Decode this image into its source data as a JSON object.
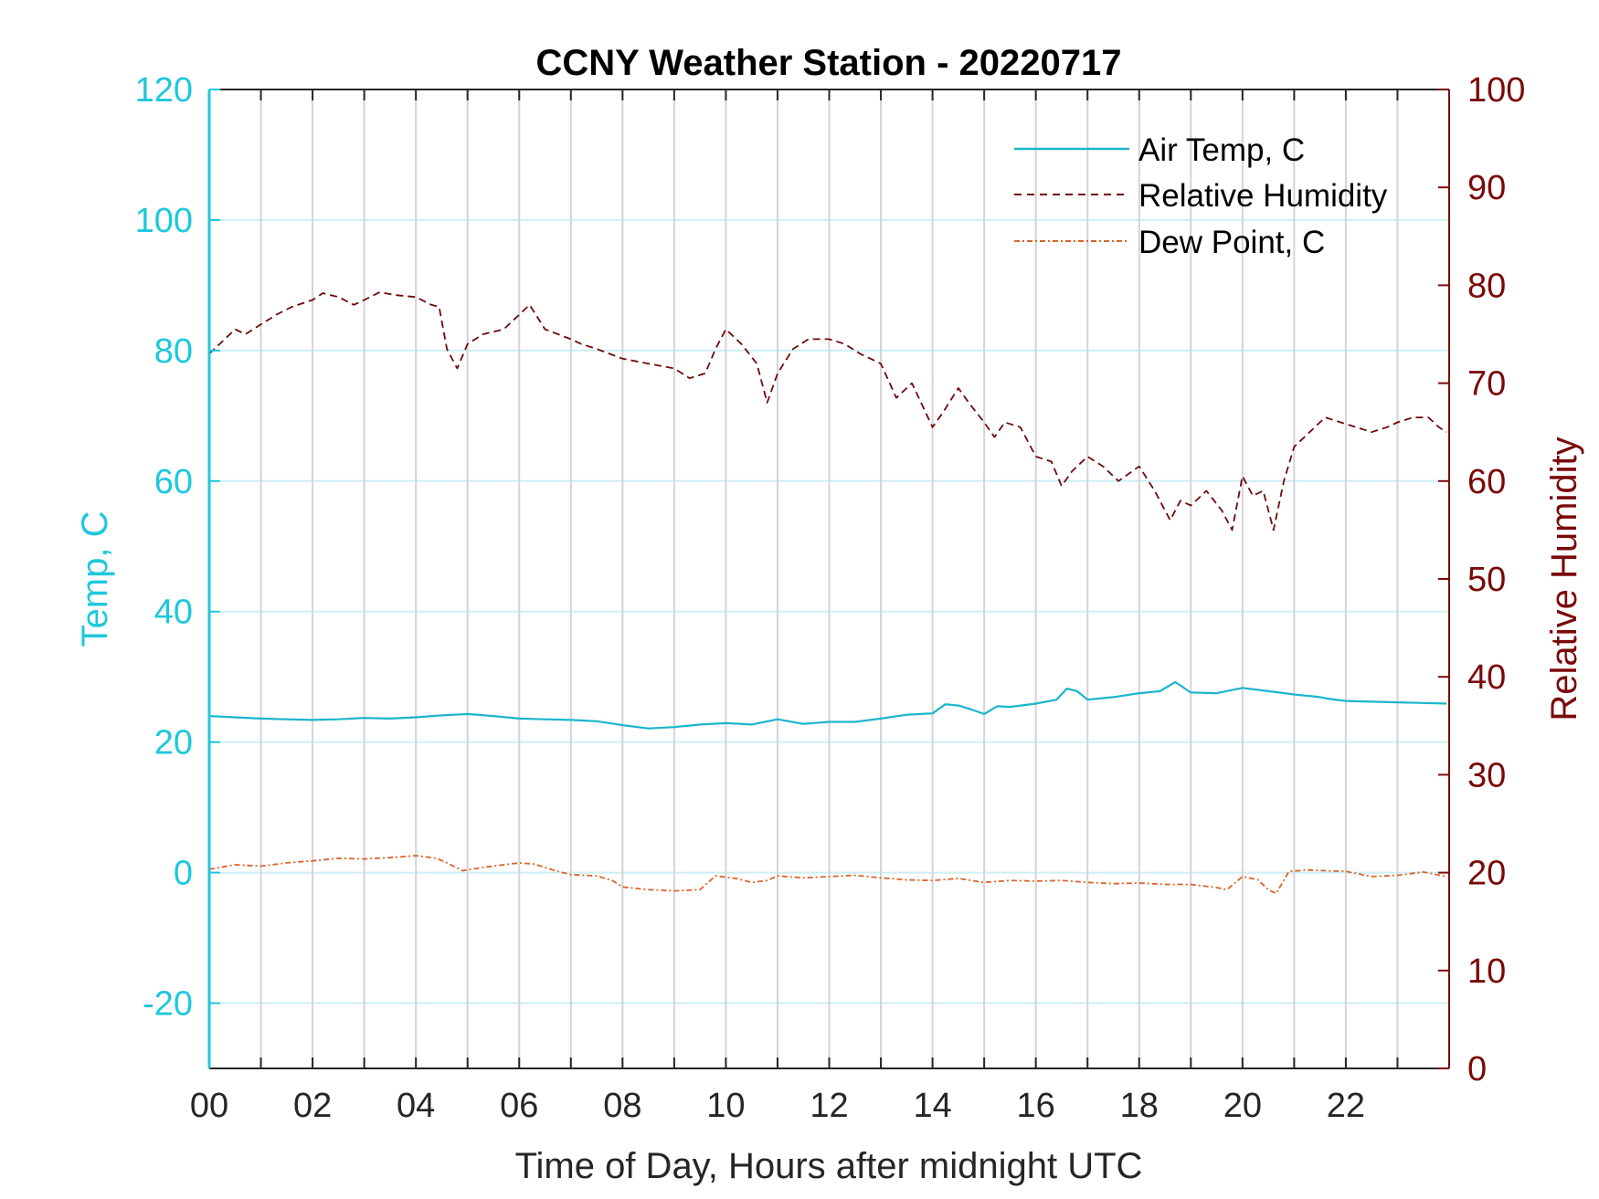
{
  "chart_data": {
    "type": "line",
    "title": "CCNY Weather Station - 20220717",
    "xlabel": "Time of Day, Hours after midnight UTC",
    "ylabel_left": "Temp, C",
    "ylabel_right": "Relative Humidity",
    "xlim": [
      0,
      24
    ],
    "ylim_left": [
      -30,
      120
    ],
    "ylim_right": [
      0,
      100
    ],
    "x_ticks": [
      0,
      2,
      4,
      6,
      8,
      10,
      12,
      14,
      16,
      18,
      20,
      22
    ],
    "x_tick_labels": [
      "00",
      "02",
      "04",
      "06",
      "08",
      "10",
      "12",
      "14",
      "16",
      "18",
      "20",
      "22"
    ],
    "y_left_ticks": [
      -20,
      0,
      20,
      40,
      60,
      80,
      100,
      120
    ],
    "y_left_tick_labels": [
      "-20",
      "0",
      "20",
      "40",
      "60",
      "80",
      "100",
      "120"
    ],
    "y_right_ticks": [
      0,
      10,
      20,
      30,
      40,
      50,
      60,
      70,
      80,
      90,
      100
    ],
    "y_right_tick_labels": [
      "0",
      "10",
      "20",
      "30",
      "40",
      "50",
      "60",
      "70",
      "80",
      "90",
      "100"
    ],
    "grid": "vertical lines every hour; light horizontal lines at left-axis ticks",
    "legend_position": "top-right",
    "colors": {
      "left_axis": "#1ec8dc",
      "right_axis": "#7a0a0a",
      "air_temp": "#1ab6cc",
      "relative_humidity": "#6e0a0a",
      "dew_point": "#d9642a",
      "grid_vertical": "#d4d4d4",
      "grid_horizontal": "#cdeff5"
    },
    "series": [
      {
        "name": "Air Temp, C",
        "axis": "left",
        "style": "solid",
        "x": [
          0,
          0.5,
          1,
          1.5,
          2,
          2.5,
          3,
          3.5,
          4,
          4.5,
          5,
          5.5,
          6,
          6.5,
          7,
          7.5,
          8,
          8.5,
          9,
          9.5,
          10,
          10.5,
          11,
          11.5,
          12,
          12.5,
          13,
          13.5,
          14,
          14.25,
          14.5,
          14.75,
          15,
          15.25,
          15.5,
          16,
          16.4,
          16.6,
          16.8,
          17,
          17.5,
          18,
          18.4,
          18.7,
          19,
          19.5,
          20,
          20.5,
          21,
          21.5,
          21.7,
          22,
          22.5,
          23,
          23.5,
          23.95
        ],
        "y": [
          24,
          23.8,
          23.6,
          23.5,
          23.4,
          23.5,
          23.7,
          23.6,
          23.8,
          24.1,
          24.3,
          24,
          23.6,
          23.5,
          23.4,
          23.2,
          22.6,
          22.1,
          22.3,
          22.7,
          22.9,
          22.7,
          23.5,
          22.8,
          23.1,
          23.1,
          23.6,
          24.2,
          24.4,
          25.8,
          25.6,
          25,
          24.3,
          25.5,
          25.4,
          25.9,
          26.5,
          28.2,
          27.8,
          26.5,
          26.9,
          27.5,
          27.8,
          29.2,
          27.6,
          27.5,
          28.3,
          27.8,
          27.3,
          26.9,
          26.6,
          26.3,
          26.2,
          26.1,
          26,
          25.9
        ]
      },
      {
        "name": "Relative Humidity",
        "axis": "right",
        "style": "dashed",
        "x": [
          0,
          0.3,
          0.5,
          0.7,
          1,
          1.3,
          1.6,
          2,
          2.2,
          2.5,
          2.8,
          3,
          3.3,
          3.6,
          4,
          4.3,
          4.45,
          4.6,
          4.8,
          5,
          5.3,
          5.7,
          6,
          6.2,
          6.5,
          7,
          7.2,
          7.5,
          8,
          8.5,
          9,
          9.3,
          9.6,
          9.8,
          10,
          10.3,
          10.6,
          10.8,
          11,
          11.3,
          11.6,
          12,
          12.3,
          12.6,
          13,
          13.3,
          13.6,
          14,
          14.2,
          14.5,
          14.7,
          15,
          15.2,
          15.4,
          15.7,
          16,
          16.3,
          16.5,
          16.7,
          17,
          17.3,
          17.6,
          18,
          18.3,
          18.6,
          18.8,
          19,
          19.3,
          19.6,
          19.8,
          20,
          20.2,
          20.4,
          20.6,
          20.8,
          21,
          21.3,
          21.6,
          21.9,
          22.2,
          22.5,
          22.8,
          23,
          23.3,
          23.6,
          23.8,
          23.95
        ],
        "y": [
          73,
          74.5,
          75.5,
          75,
          76,
          77,
          77.8,
          78.5,
          79.2,
          78.8,
          78,
          78.5,
          79.3,
          79,
          78.8,
          78,
          77.8,
          73.5,
          71.5,
          74,
          75,
          75.5,
          77,
          78,
          75.5,
          74.5,
          74,
          73.5,
          72.5,
          72,
          71.5,
          70.5,
          71,
          73.5,
          75.5,
          74,
          72,
          68,
          71,
          73.5,
          74.5,
          74.5,
          74,
          73,
          72,
          68.5,
          70,
          65.5,
          67,
          69.5,
          68,
          66,
          64.5,
          66,
          65.5,
          62.5,
          62,
          59.5,
          61,
          62.5,
          61.5,
          60,
          61.5,
          59,
          56,
          58,
          57.5,
          59,
          57,
          55,
          60.5,
          58.5,
          59,
          55,
          60,
          63.5,
          65,
          66.5,
          66,
          65.5,
          65,
          65.5,
          66,
          66.5,
          66.5,
          65.5,
          65
        ]
      },
      {
        "name": "Dew Point, C",
        "axis": "left",
        "style": "dash-dot",
        "x": [
          0,
          0.5,
          1,
          1.5,
          2,
          2.5,
          3,
          3.5,
          4,
          4.4,
          4.6,
          4.9,
          5.3,
          5.7,
          6,
          6.3,
          6.7,
          7,
          7.5,
          7.8,
          8,
          8.5,
          9,
          9.5,
          9.8,
          10.2,
          10.5,
          10.8,
          11,
          11.5,
          12,
          12.5,
          13,
          13.5,
          14,
          14.5,
          15,
          15.5,
          16,
          16.5,
          17,
          17.5,
          18,
          18.5,
          19,
          19.5,
          19.7,
          20,
          20.3,
          20.5,
          20.65,
          20.9,
          21.3,
          21.6,
          22,
          22.5,
          23,
          23.5,
          23.95
        ],
        "y": [
          0.5,
          1.2,
          1,
          1.5,
          1.8,
          2.2,
          2.1,
          2.3,
          2.6,
          2.2,
          1.5,
          0.3,
          0.8,
          1.2,
          1.5,
          1.3,
          0.3,
          -0.3,
          -0.5,
          -1.2,
          -2.2,
          -2.6,
          -2.8,
          -2.6,
          -0.5,
          -0.9,
          -1.5,
          -1.2,
          -0.5,
          -0.8,
          -0.6,
          -0.4,
          -0.8,
          -1.1,
          -1.2,
          -0.9,
          -1.5,
          -1.2,
          -1.3,
          -1.2,
          -1.5,
          -1.7,
          -1.6,
          -1.8,
          -1.8,
          -2.3,
          -2.6,
          -0.6,
          -1.1,
          -2.6,
          -3.2,
          0.2,
          0.4,
          0.3,
          0.2,
          -0.6,
          -0.4,
          0.1,
          -0.6
        ]
      }
    ]
  }
}
